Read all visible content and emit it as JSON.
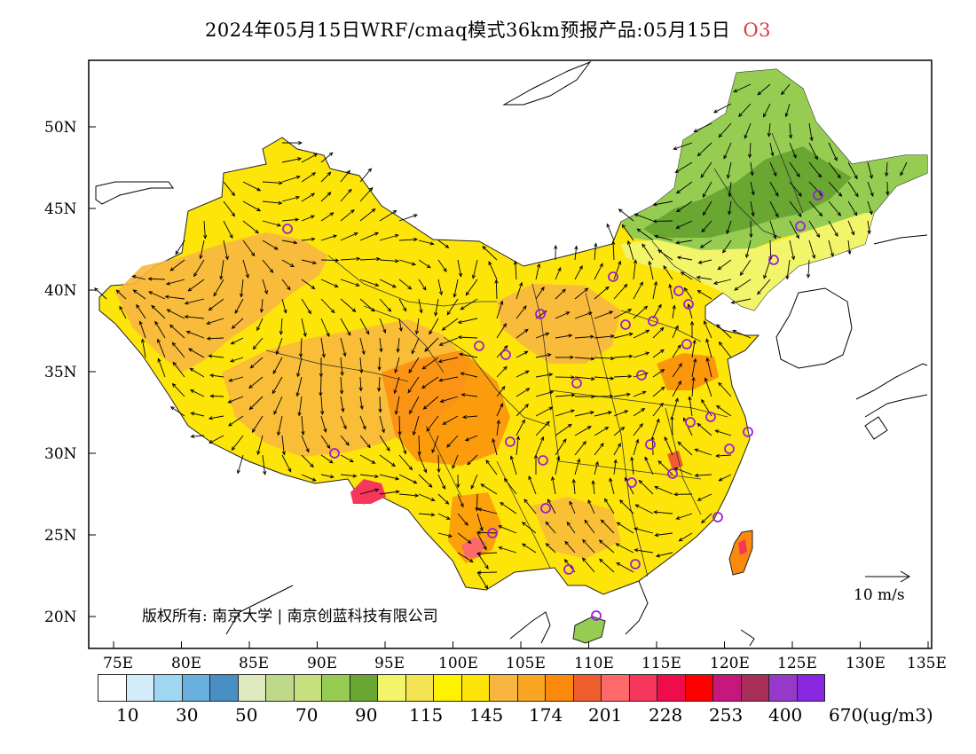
{
  "title": {
    "main": "2024年05月15日WRF/cmaq模式36km预报产品:05月15日",
    "species": "O3",
    "species_color": "#e23b3b"
  },
  "axes": {
    "lat_labels": [
      "50N",
      "45N",
      "40N",
      "35N",
      "30N",
      "25N",
      "20N"
    ],
    "lon_labels": [
      "75E",
      "80E",
      "85E",
      "90E",
      "95E",
      "100E",
      "105E",
      "110E",
      "115E",
      "120E",
      "125E",
      "130E",
      "135E"
    ]
  },
  "copyright": "版权所有: 南京大学 | 南京创蓝科技有限公司",
  "wind_scale": {
    "label": "10 m/s"
  },
  "legend": {
    "unit": "(ug/m3)",
    "colors": [
      "#ffffff",
      "#d3ecfa",
      "#9fd6f2",
      "#6ab0de",
      "#4a8fc4",
      "#dfe9c0",
      "#bfd98a",
      "#c6e07e",
      "#96cc52",
      "#6aa632",
      "#f2f56a",
      "#f4e352",
      "#fff200",
      "#fde50a",
      "#f8b640",
      "#f9a623",
      "#fb8a0c",
      "#f05d2c",
      "#fe6a6a",
      "#f4375a",
      "#ee0c4a",
      "#ff0000",
      "#c6187c",
      "#a82f5a",
      "#9638c9",
      "#8826e0"
    ],
    "tick_labels": [
      "10",
      "30",
      "50",
      "70",
      "90",
      "115",
      "145",
      "174",
      "201",
      "228",
      "253",
      "400",
      "670"
    ]
  },
  "colors": {
    "land_low": "#6aa632",
    "land_mid": "#96cc52",
    "land_yellow": "#fff200",
    "land_orange": "#f8b640",
    "land_deep": "#fb8a0c",
    "hot": "#f4375a",
    "station": "#9b1fd6"
  }
}
